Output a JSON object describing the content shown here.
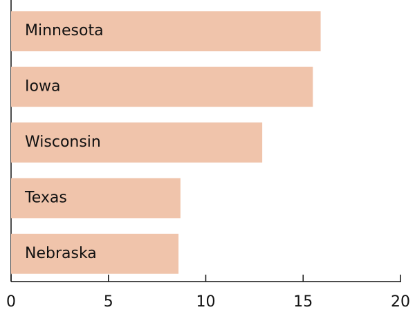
{
  "chart_data": {
    "type": "bar",
    "orientation": "horizontal",
    "categories": [
      "Minnesota",
      "Iowa",
      "Wisconsin",
      "Texas",
      "Nebraska"
    ],
    "values": [
      15.9,
      15.5,
      12.9,
      8.7,
      8.6
    ],
    "color": "#f0c4ab",
    "xlim": [
      0,
      20
    ],
    "xticks": [
      0,
      5,
      10,
      15,
      20
    ],
    "grid": false
  }
}
